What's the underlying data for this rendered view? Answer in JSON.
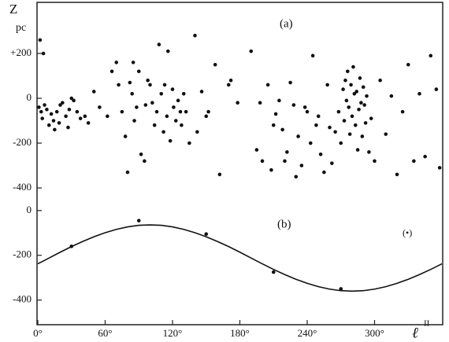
{
  "chart_data": [
    {
      "type": "scatter",
      "title": "(a)",
      "y_label": "Z",
      "y_unit": "pc",
      "color": "#111",
      "xlim": [
        0,
        360
      ],
      "ylim": [
        -456,
        428
      ],
      "yticks": [
        {
          "value": 200,
          "label": "+200"
        },
        0,
        -200,
        -400
      ],
      "x": [
        1,
        3,
        4,
        6,
        8,
        10,
        12,
        14,
        15,
        17,
        19,
        20,
        22,
        25,
        27,
        28,
        30,
        32,
        35,
        38,
        42,
        45,
        5,
        2,
        50,
        55,
        62,
        66,
        70,
        72,
        75,
        78,
        80,
        82,
        84,
        85,
        86,
        88,
        90,
        92,
        95,
        96,
        98,
        100,
        102,
        104,
        106,
        108,
        110,
        112,
        113,
        115,
        116,
        118,
        120,
        121,
        123,
        125,
        127,
        128,
        130,
        132,
        135,
        140,
        142,
        146,
        150,
        152,
        158,
        162,
        170,
        172,
        178,
        190,
        195,
        198,
        200,
        205,
        208,
        210,
        212,
        215,
        218,
        220,
        222,
        225,
        228,
        230,
        232,
        235,
        238,
        240,
        243,
        245,
        248,
        250,
        252,
        255,
        258,
        260,
        262,
        265,
        268,
        270,
        272,
        273,
        274,
        275,
        276,
        277,
        278,
        279,
        280,
        281,
        282,
        283,
        284,
        285,
        286,
        287,
        288,
        289,
        290,
        291,
        292,
        293,
        295,
        297,
        300,
        305,
        310,
        315,
        320,
        325,
        330,
        335,
        340,
        345,
        350,
        355,
        358
      ],
      "y": [
        -40,
        -60,
        -90,
        -30,
        -50,
        -120,
        -70,
        -100,
        -140,
        -60,
        -110,
        -30,
        -20,
        -80,
        -130,
        -50,
        0,
        -10,
        -60,
        -90,
        -80,
        -110,
        200,
        260,
        30,
        -40,
        -80,
        120,
        160,
        60,
        -60,
        -170,
        -330,
        70,
        20,
        160,
        -100,
        -40,
        120,
        -250,
        -280,
        -30,
        80,
        60,
        -20,
        -120,
        -60,
        240,
        20,
        -150,
        60,
        -80,
        210,
        -190,
        40,
        -40,
        -100,
        -10,
        -60,
        -120,
        20,
        -60,
        -200,
        280,
        -150,
        30,
        -80,
        -60,
        150,
        -340,
        60,
        80,
        -20,
        210,
        -230,
        -20,
        -280,
        60,
        -320,
        -120,
        -70,
        -10,
        -140,
        -280,
        -240,
        70,
        -30,
        -350,
        -170,
        -300,
        -40,
        -60,
        -200,
        190,
        -120,
        -80,
        -250,
        -330,
        60,
        -130,
        -290,
        -150,
        -60,
        -200,
        40,
        -100,
        80,
        -10,
        120,
        -40,
        -160,
        60,
        -80,
        140,
        20,
        -120,
        30,
        -230,
        -50,
        90,
        -20,
        -170,
        50,
        -30,
        -110,
        10,
        -240,
        -90,
        -280,
        80,
        -160,
        10,
        -340,
        -60,
        150,
        -280,
        20,
        -260,
        190,
        40,
        -310
      ]
    },
    {
      "type": "line",
      "title": "(b)",
      "annotation": "(•)",
      "x_label": "ℓ",
      "x_label_sup": "II",
      "color": "#111",
      "xlim": [
        0,
        360
      ],
      "ylim": [
        -510,
        45
      ],
      "yticks": [
        0,
        -200,
        -400
      ],
      "xticks": [
        {
          "value": 0,
          "label": "0°"
        },
        {
          "value": 60,
          "label": "60°"
        },
        {
          "value": 120,
          "label": "120°"
        },
        {
          "value": 180,
          "label": "180°"
        },
        {
          "value": 240,
          "label": "240°"
        },
        {
          "value": 300,
          "label": "300°"
        }
      ],
      "curve": {
        "x": [
          0,
          10,
          20,
          30,
          40,
          50,
          60,
          70,
          80,
          90,
          100,
          110,
          120,
          130,
          140,
          150,
          160,
          170,
          180,
          190,
          200,
          210,
          220,
          230,
          240,
          250,
          260,
          270,
          280,
          290,
          300,
          310,
          320,
          330,
          340,
          350,
          360
        ],
        "y": [
          -238,
          -212,
          -186,
          -161,
          -138,
          -117,
          -99,
          -84,
          -73,
          -66,
          -64,
          -66,
          -73,
          -84,
          -99,
          -117,
          -138,
          -161,
          -186,
          -212,
          -238,
          -263,
          -286,
          -307,
          -325,
          -340,
          -351,
          -358,
          -360,
          -358,
          -351,
          -340,
          -325,
          -307,
          -286,
          -263,
          -238
        ]
      },
      "points": {
        "x": [
          30,
          90,
          150,
          210,
          270
        ],
        "y": [
          -160,
          -45,
          -105,
          -275,
          -350
        ]
      }
    }
  ]
}
